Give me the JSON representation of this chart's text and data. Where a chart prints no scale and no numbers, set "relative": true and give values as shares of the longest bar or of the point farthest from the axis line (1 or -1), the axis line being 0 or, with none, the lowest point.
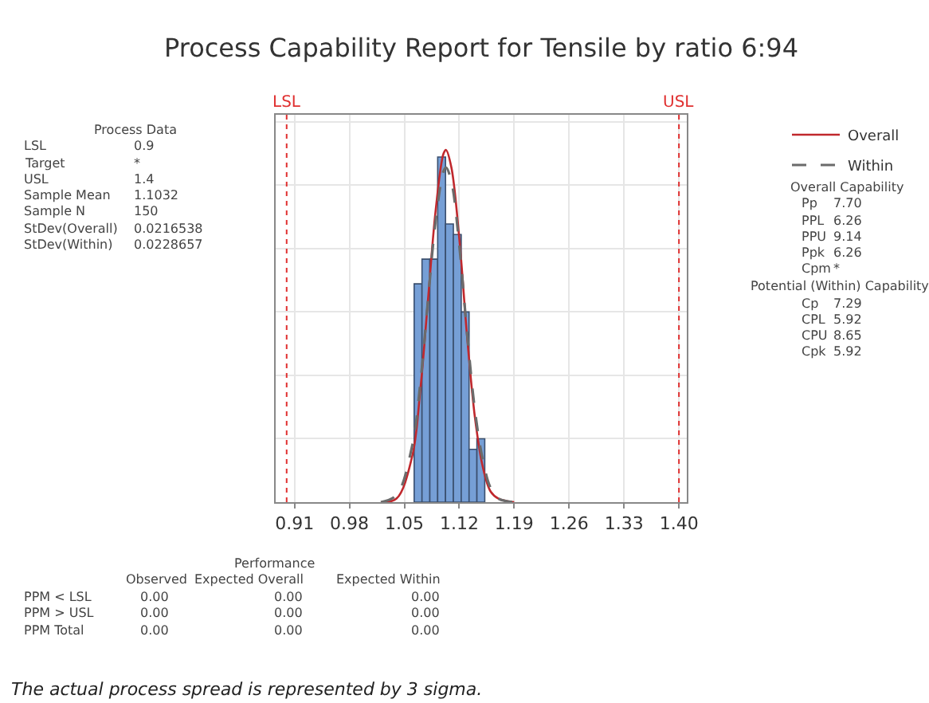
{
  "chart_data": {
    "type": "histogram",
    "title": "Process Capability Report for Tensile by ratio 6:94",
    "relative": true,
    "bins": [
      1.0625,
      1.0725,
      1.0825,
      1.0925,
      1.1025,
      1.1125,
      1.1225,
      1.1325,
      1.1425,
      1.1525
    ],
    "values": [
      0.62,
      0.69,
      0.69,
      0.98,
      0.79,
      0.76,
      0.54,
      0.15,
      0.18
    ],
    "color": "#769fd6",
    "series": [
      {
        "name": "Overall",
        "type": "line",
        "color": "#c0282d",
        "line_style": "solid",
        "x": [
          1.02,
          1.04,
          1.06,
          1.07,
          1.08,
          1.09,
          1.1,
          1.1032,
          1.11,
          1.12,
          1.13,
          1.14,
          1.15,
          1.16,
          1.17,
          1.19
        ],
        "values": [
          0,
          0.01,
          0.13,
          0.31,
          0.57,
          0.83,
          0.99,
          1,
          0.95,
          0.75,
          0.47,
          0.24,
          0.1,
          0.03,
          0.01,
          0
        ]
      },
      {
        "name": "Within",
        "type": "line",
        "color": "#6b6b6b",
        "line_style": "dashed",
        "x": [
          1.02,
          1.04,
          1.06,
          1.07,
          1.08,
          1.09,
          1.1,
          1.1032,
          1.11,
          1.12,
          1.13,
          1.14,
          1.15,
          1.16,
          1.17,
          1.19
        ],
        "values": [
          0,
          0.02,
          0.16,
          0.33,
          0.57,
          0.8,
          0.94,
          0.95,
          0.91,
          0.73,
          0.48,
          0.26,
          0.12,
          0.04,
          0.01,
          0
        ]
      }
    ],
    "xlim": [
      0.886,
      1.41
    ],
    "xticks": [
      0.91,
      0.98,
      1.05,
      1.12,
      1.19,
      1.26,
      1.33,
      {
        "value": 1.4,
        "label": "1.40"
      }
    ],
    "ref_lines": [
      {
        "axis": "x",
        "value": 0.9,
        "label": "LSL",
        "color": "#e03030",
        "line_style": "dotted"
      },
      {
        "axis": "x",
        "value": 1.4,
        "label": "USL",
        "color": "#e03030",
        "line_style": "dotted"
      }
    ],
    "grid": true,
    "legend": "top right",
    "annotations": [
      "Process Data",
      "LSL",
      "0.9",
      "Target",
      "*",
      "USL",
      "1.4",
      "Sample Mean",
      "1.1032",
      "Sample N",
      "150",
      "StDev(Overall)",
      "0.0216538",
      "StDev(Within)",
      "0.0228657",
      "Overall Capability",
      "Pp",
      "7.70",
      "PPL",
      "6.26",
      "PPU",
      "9.14",
      "Ppk",
      "6.26",
      "Cpm",
      "*",
      "Potential (Within) Capability",
      "Cp",
      "7.29",
      "CPL",
      "5.92",
      "CPU",
      "8.65",
      "Cpk",
      "5.92",
      "Performance",
      "Observed",
      "Expected Overall",
      "Expected Within",
      "PPM < LSL",
      "0.00",
      "0.00",
      "0.00",
      "PPM > USL",
      "0.00",
      "0.00",
      "0.00",
      "PPM Total",
      "0.00",
      "0.00",
      "0.00",
      "The actual process spread is represented by 3 sigma."
    ]
  }
}
